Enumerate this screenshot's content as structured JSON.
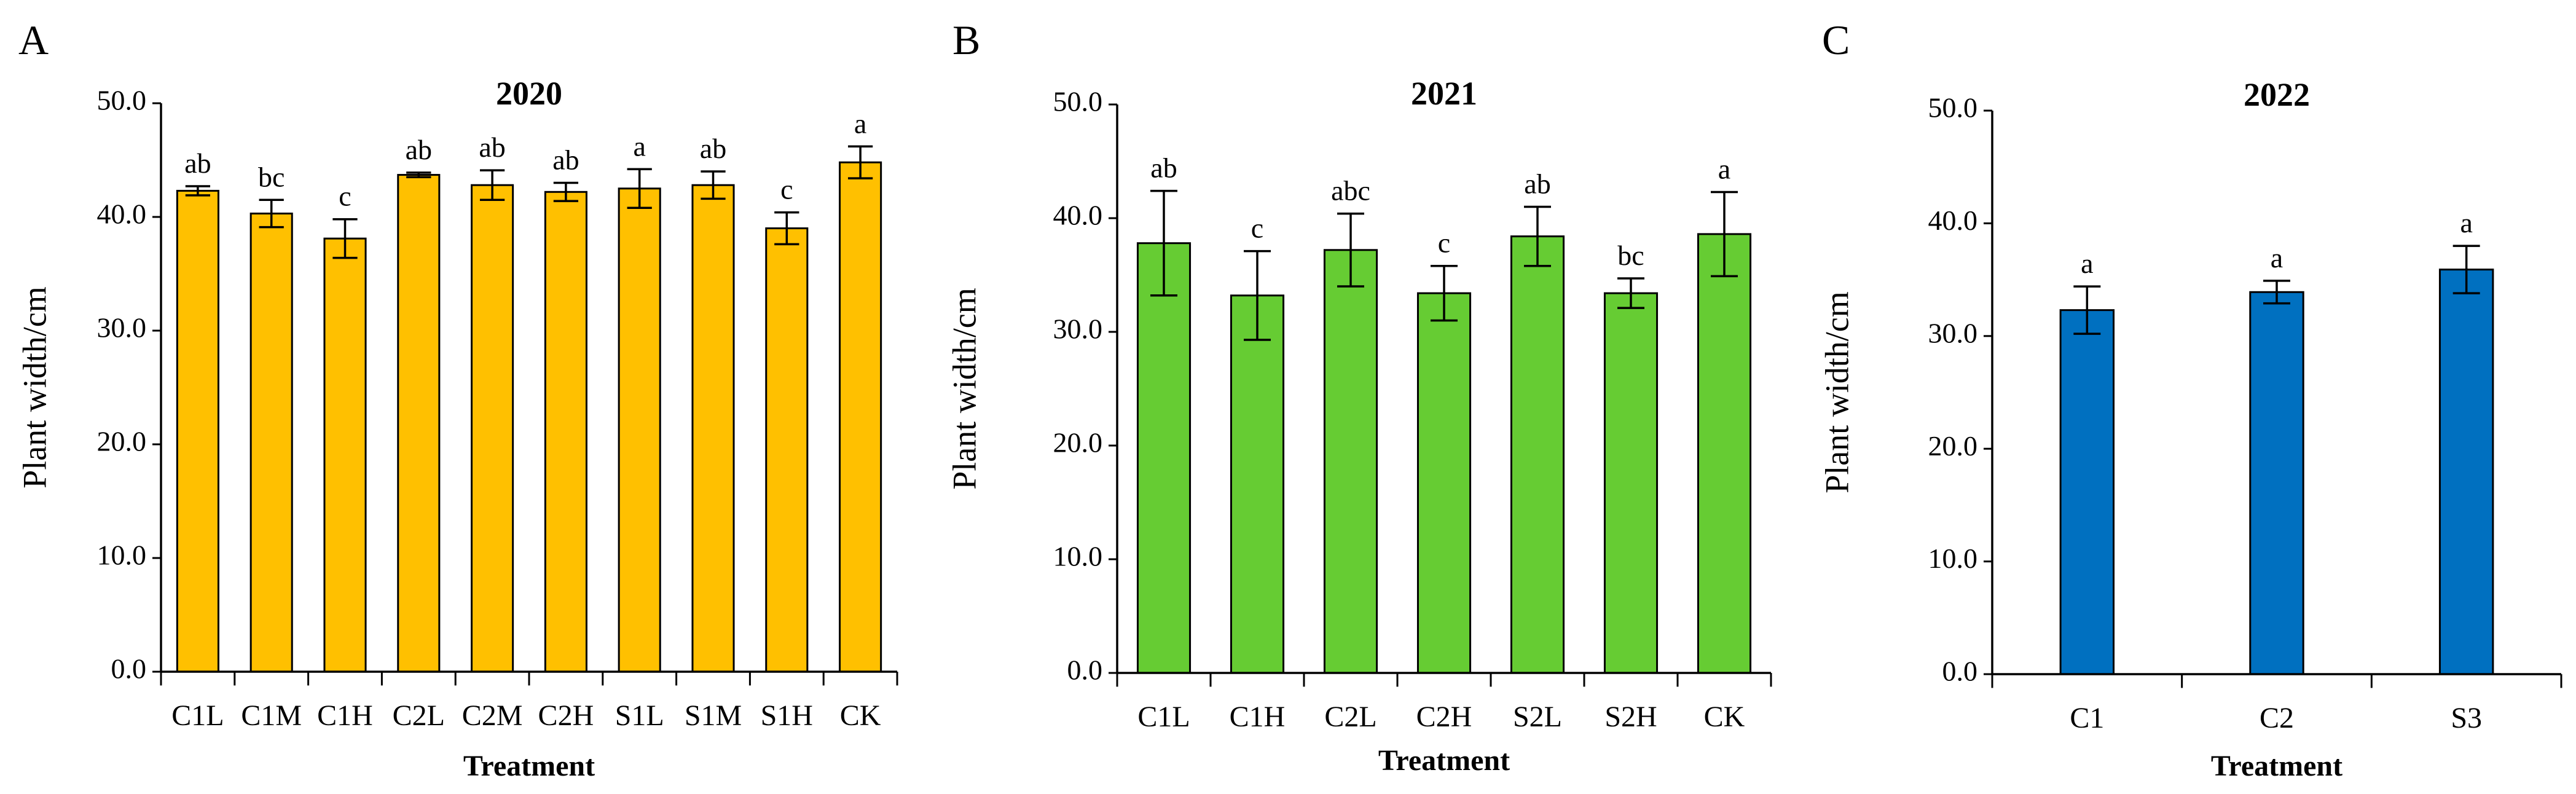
{
  "chart_data": [
    {
      "type": "bar",
      "panel": "A",
      "title": "2020",
      "xlabel": "Treatment",
      "ylabel": "Plant width/cm",
      "ylim": [
        0,
        50
      ],
      "yticks": [
        "0.0",
        "10.0",
        "20.0",
        "30.0",
        "40.0",
        "50.0"
      ],
      "categories": [
        "C1L",
        "C1M",
        "C1H",
        "C2L",
        "C2M",
        "C2H",
        "S1L",
        "S1M",
        "S1H",
        "CK"
      ],
      "values": [
        42.3,
        40.3,
        38.1,
        43.7,
        42.8,
        42.2,
        42.5,
        42.8,
        39.0,
        44.8
      ],
      "errors": [
        0.4,
        1.2,
        1.7,
        0.2,
        1.3,
        0.8,
        1.7,
        1.2,
        1.4,
        1.4
      ],
      "labels": [
        "ab",
        "bc",
        "c",
        "ab",
        "ab",
        "ab",
        "a",
        "ab",
        "c",
        "a"
      ],
      "color": "#FFC000"
    },
    {
      "type": "bar",
      "panel": "B",
      "title": "2021",
      "xlabel": "Treatment",
      "ylabel": "Plant width/cm",
      "ylim": [
        0,
        50
      ],
      "yticks": [
        "0.0",
        "10.0",
        "20.0",
        "30.0",
        "40.0",
        "50.0"
      ],
      "categories": [
        "C1L",
        "C1H",
        "C2L",
        "C2H",
        "S2L",
        "S2H",
        "CK"
      ],
      "values": [
        37.8,
        33.2,
        37.2,
        33.4,
        38.4,
        33.4,
        38.6
      ],
      "errors": [
        4.6,
        3.9,
        3.2,
        2.4,
        2.6,
        1.3,
        3.7
      ],
      "labels": [
        "ab",
        "c",
        "abc",
        "c",
        "ab",
        "bc",
        "a"
      ],
      "color": "#66CC33"
    },
    {
      "type": "bar",
      "panel": "C",
      "title": "2022",
      "xlabel": "Treatment",
      "ylabel": "Plant width/cm",
      "ylim": [
        0,
        50
      ],
      "yticks": [
        "0.0",
        "10.0",
        "20.0",
        "30.0",
        "40.0",
        "50.0"
      ],
      "categories": [
        "C1",
        "C2",
        "S3"
      ],
      "values": [
        32.3,
        33.9,
        35.9
      ],
      "errors": [
        2.1,
        1.0,
        2.1
      ],
      "labels": [
        "a",
        "a",
        "a"
      ],
      "color": "#0070C0"
    }
  ]
}
